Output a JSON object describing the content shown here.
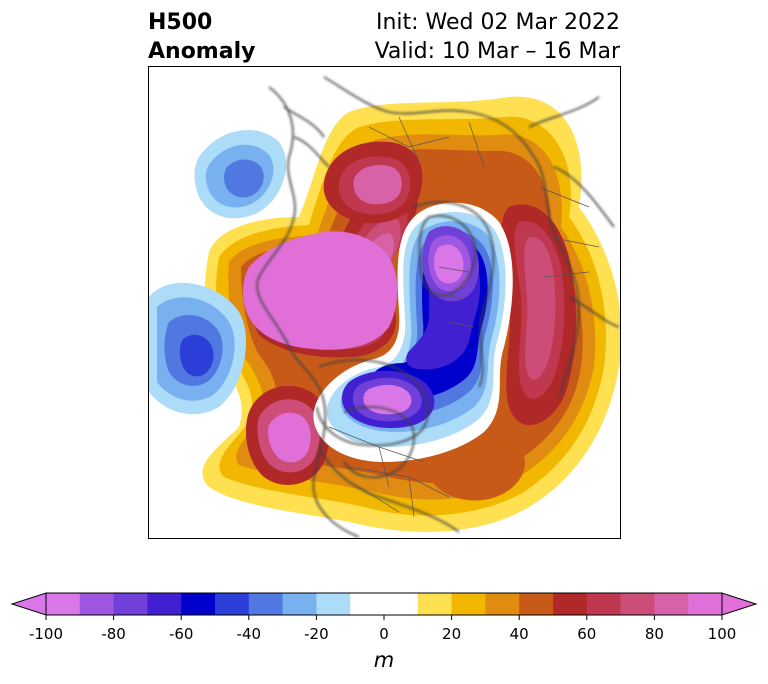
{
  "title": {
    "left_line1": "H500",
    "left_line2": "Anomaly",
    "right_line1": "Init: Wed 02 Mar 2022",
    "right_line2": "Valid: 10 Mar – 16 Mar"
  },
  "colorbar": {
    "unit": "m",
    "ticks": [
      "-100",
      "-80",
      "-60",
      "-40",
      "-20",
      "0",
      "20",
      "40",
      "60",
      "80",
      "100"
    ],
    "tick_values": [
      -100,
      -80,
      -60,
      -40,
      -20,
      0,
      20,
      40,
      60,
      80,
      100
    ],
    "levels": [
      -100,
      -90,
      -80,
      -70,
      -60,
      -50,
      -40,
      -30,
      -20,
      -10,
      10,
      20,
      30,
      40,
      50,
      60,
      70,
      80,
      90,
      100
    ],
    "colors": [
      "#d977e8",
      "#9f56e0",
      "#7040d8",
      "#4020d0",
      "#0000cc",
      "#2c3ed8",
      "#5078e0",
      "#78b0f0",
      "#acdcf8",
      "#ffffff",
      "#ffe050",
      "#f2b700",
      "#e08c10",
      "#c85a18",
      "#b02828",
      "#c03850",
      "#cc4e78",
      "#d862a8",
      "#e070d8"
    ],
    "extend_low": "#d977e8",
    "extend_high": "#e070d8"
  },
  "map": {
    "projection": "north polar stereographic",
    "features": [
      "coastlines",
      "country borders",
      "state borders"
    ]
  }
}
